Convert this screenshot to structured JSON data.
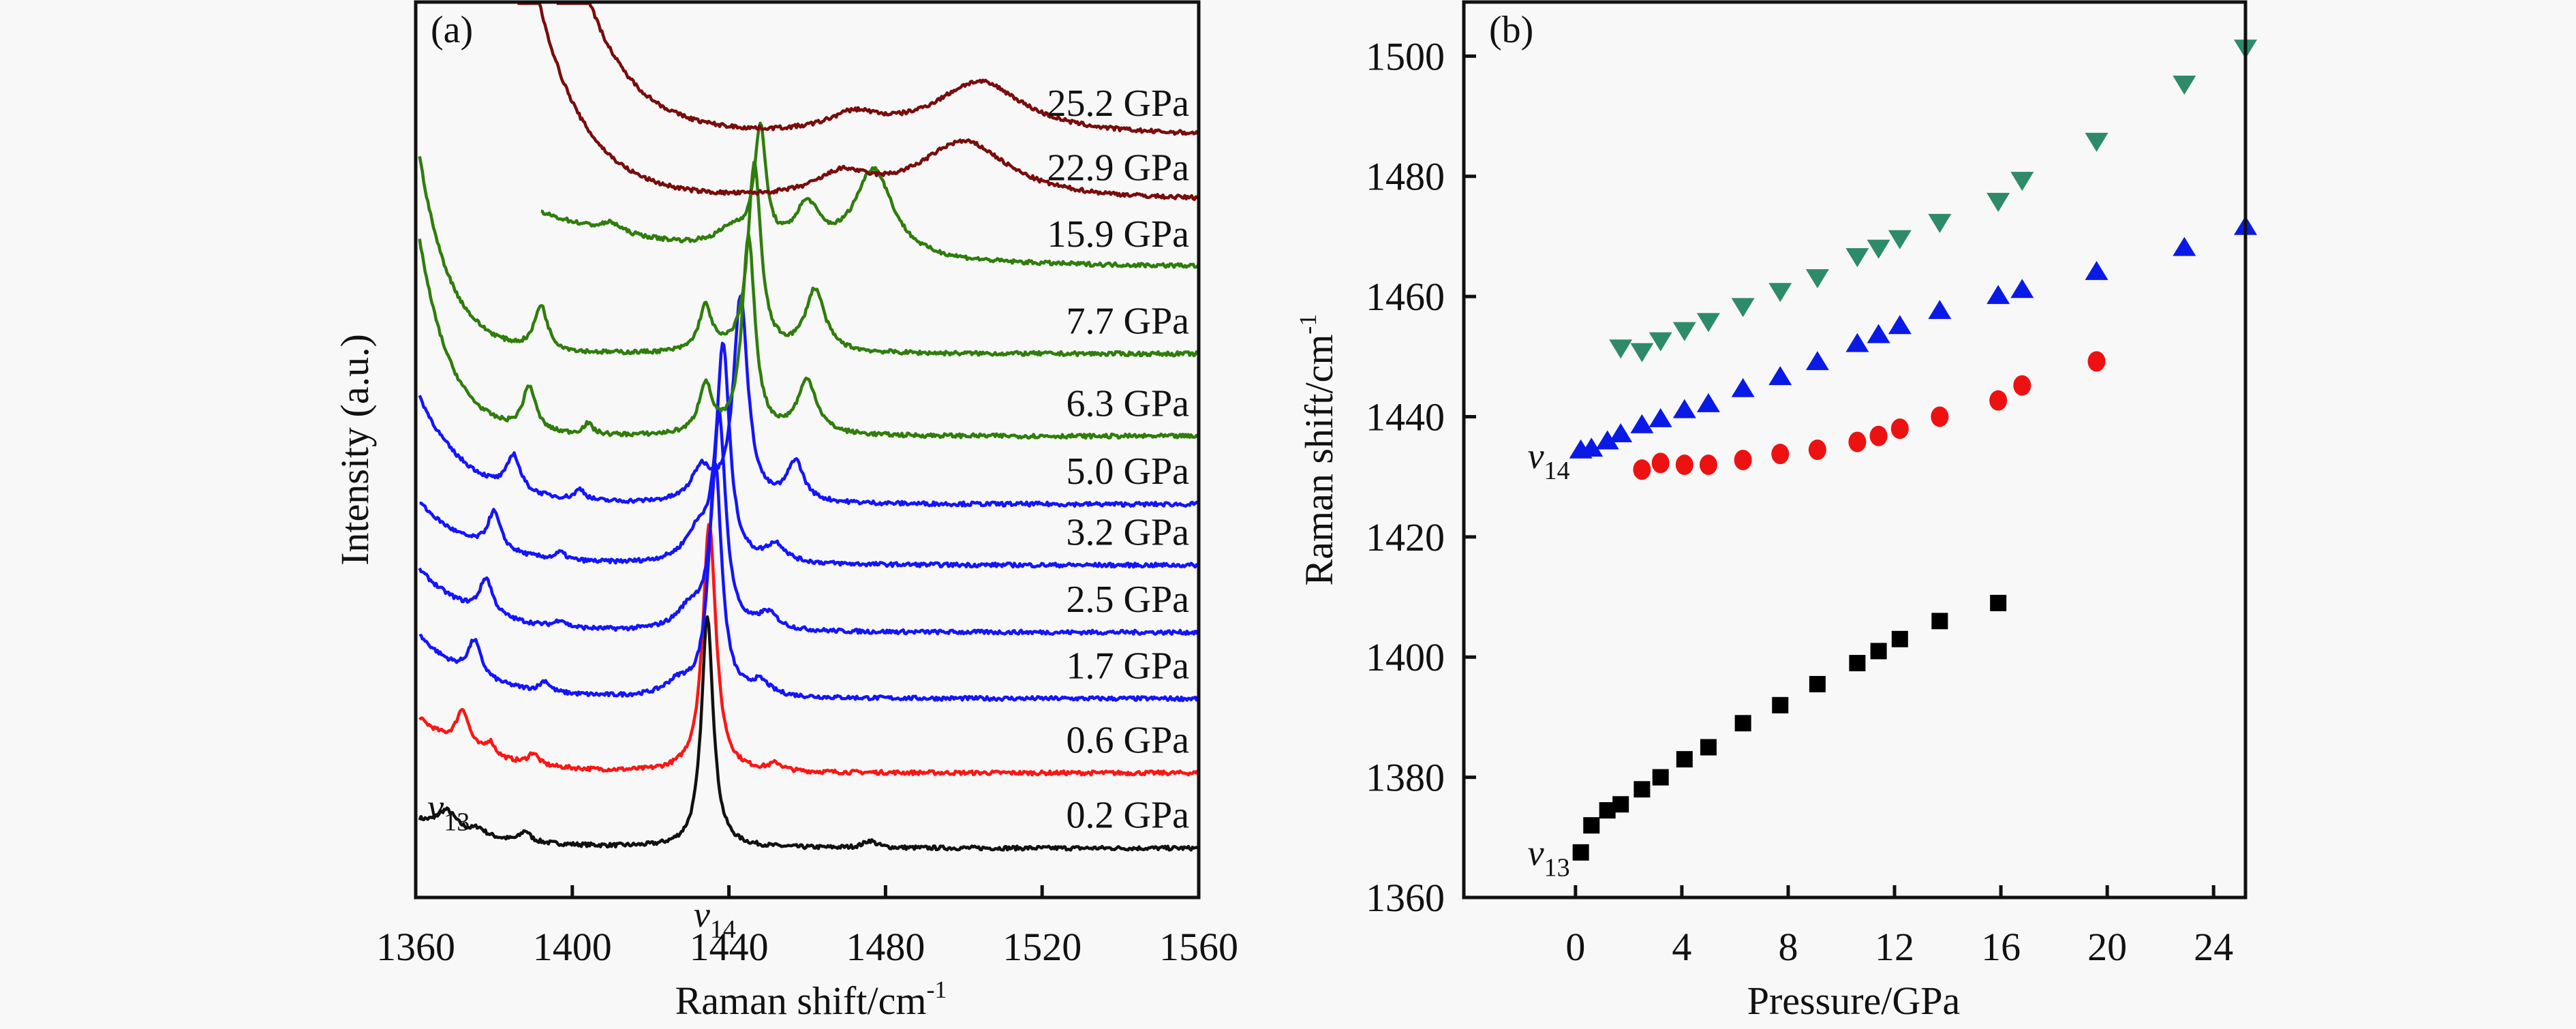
{
  "chart_data": [
    {
      "panel": "(a)",
      "type": "line",
      "title": "",
      "xlabel": "Raman shift/cm",
      "xlabel_sup": "-1",
      "ylabel": "Intensity (a.u.)",
      "xlim": [
        1360,
        1560
      ],
      "ylim": [
        0,
        100
      ],
      "xticks": [
        1360,
        1400,
        1440,
        1480,
        1520,
        1560
      ],
      "yticks": [],
      "grid": false,
      "annotations": [
        {
          "text": "v",
          "sub": "13",
          "x": 1363,
          "y": 11
        },
        {
          "text": "v",
          "sub": "14",
          "x": 1431,
          "y": -1
        }
      ],
      "series": [
        {
          "name": "0.2 GPa",
          "color": "#111111",
          "xstart": 1361,
          "baseline": 5.5,
          "background": {
            "amp": 3.0,
            "decay": 18
          },
          "peaks": [
            [
              1368,
              2.2,
              3
            ],
            [
              1376,
              0.8,
              2
            ],
            [
              1388,
              1.2,
              1.5
            ],
            [
              1434.5,
              26,
              1.8
            ],
            [
              1476,
              0.8,
              2
            ]
          ]
        },
        {
          "name": "0.6 GPa",
          "color": "#ff1414",
          "xstart": 1361,
          "baseline": 13.9,
          "background": {
            "amp": 6.0,
            "decay": 15
          },
          "peaks": [
            [
              1372,
              4.2,
              2
            ],
            [
              1379,
              1.5,
              1.5
            ],
            [
              1390,
              1.3,
              1.5
            ],
            [
              1435,
              28,
              2
            ],
            [
              1452,
              0.8,
              2
            ]
          ]
        },
        {
          "name": "1.7 GPa",
          "color": "#1414ff",
          "xstart": 1361,
          "baseline": 22.2,
          "background": {
            "amp": 7.0,
            "decay": 14
          },
          "peaks": [
            [
              1375,
              4.0,
              2
            ],
            [
              1393,
              1.2,
              1.5
            ],
            [
              1427,
              1.5,
              4
            ],
            [
              1436.5,
              26,
              2
            ],
            [
              1448,
              1.5,
              3
            ]
          ]
        },
        {
          "name": "2.5 GPa",
          "color": "#1414ff",
          "xstart": 1361,
          "baseline": 29.6,
          "background": {
            "amp": 7.0,
            "decay": 14
          },
          "peaks": [
            [
              1378,
              4.0,
              2
            ],
            [
              1397,
              0.8,
              1.5
            ],
            [
              1430,
              2.2,
              4
            ],
            [
              1437.5,
              24,
              2
            ],
            [
              1450,
              1.8,
              3
            ]
          ]
        },
        {
          "name": "3.2 GPa",
          "color": "#1414ff",
          "xstart": 1361,
          "baseline": 37.1,
          "background": {
            "amp": 7.0,
            "decay": 14
          },
          "peaks": [
            [
              1380,
              4.2,
              2
            ],
            [
              1397,
              0.8,
              1.5
            ],
            [
              1432,
              3.0,
              4
            ],
            [
              1438.5,
              24,
              2
            ],
            [
              1452,
              2.0,
              3
            ]
          ]
        },
        {
          "name": "5.0 GPa",
          "color": "#1414ff",
          "xstart": 1361,
          "baseline": 43.9,
          "background": {
            "amp": 12.0,
            "decay": 12
          },
          "peaks": [
            [
              1385,
              4.0,
              2
            ],
            [
              1402,
              1.2,
              1.5
            ],
            [
              1433,
              3.6,
              3
            ],
            [
              1443,
              23,
              2.2
            ],
            [
              1457,
              4.5,
              2.5
            ]
          ]
        },
        {
          "name": "6.3 GPa",
          "color": "#2f7d0c",
          "xstart": 1361,
          "baseline": 51.5,
          "background": {
            "amp": 22.0,
            "decay": 8
          },
          "peaks": [
            [
              1389,
              5.0,
              2
            ],
            [
              1404,
              1.2,
              1.5
            ],
            [
              1434,
              5.5,
              2
            ],
            [
              1445,
              22,
              2
            ],
            [
              1460,
              6.0,
              3
            ]
          ]
        },
        {
          "name": "7.7 GPa",
          "color": "#2f7d0c",
          "xstart": 1361,
          "baseline": 60.7,
          "background": {
            "amp": 22.0,
            "decay": 8
          },
          "peaks": [
            [
              1392,
              5.0,
              2
            ],
            [
              1434,
              5.0,
              2
            ],
            [
              1446.5,
              21,
              2
            ],
            [
              1462,
              7.0,
              3
            ]
          ]
        },
        {
          "name": "15.9 GPa",
          "color": "#2f7d0c",
          "xstart": 1392,
          "baseline": 70.4,
          "background": {
            "amp": 6.0,
            "decay": 40
          },
          "peaks": [
            [
              1410,
              1.0,
              3
            ],
            [
              1441,
              2.0,
              5
            ],
            [
              1448,
              13,
              1.8
            ],
            [
              1460,
              5.0,
              4
            ],
            [
              1477,
              10,
              6
            ]
          ]
        },
        {
          "name": "22.9 GPa",
          "color": "#7a0c0c",
          "xstart": 1386,
          "baseline": 77.8,
          "background": {
            "amp": 35.0,
            "decay": 12
          },
          "peaks": [
            [
              1469,
              2.5,
              8
            ],
            [
              1500,
              6.5,
              14
            ]
          ]
        },
        {
          "name": "25.2 GPa",
          "color": "#7a0c0c",
          "xstart": 1396,
          "baseline": 85.0,
          "background": {
            "amp": 30.0,
            "decay": 12
          },
          "peaks": [
            [
              1472,
              2.0,
              8
            ],
            [
              1504,
              6.0,
              14
            ]
          ]
        }
      ]
    },
    {
      "panel": "(b)",
      "type": "scatter",
      "title": "",
      "xlabel": "Pressure/GPa",
      "ylabel": "Raman shift/cm",
      "ylabel_sup": "-1",
      "xlim": [
        -4.2,
        25.2
      ],
      "ylim": [
        1360,
        1509
      ],
      "xticks": [
        0,
        4,
        8,
        12,
        16,
        20,
        24
      ],
      "yticks": [
        1360,
        1380,
        1400,
        1420,
        1440,
        1460,
        1480,
        1500
      ],
      "grid": false,
      "annotations": [
        {
          "text": "v",
          "sub": "14",
          "x": -1.8,
          "y": 1433
        },
        {
          "text": "v",
          "sub": "13",
          "x": -1.8,
          "y": 1367
        }
      ],
      "series": [
        {
          "name": "v13",
          "marker": "square",
          "color": "#000000",
          "points": [
            [
              0.2,
              1367.5
            ],
            [
              0.6,
              1372
            ],
            [
              1.2,
              1374.5
            ],
            [
              1.7,
              1375.5
            ],
            [
              2.5,
              1378
            ],
            [
              3.2,
              1380
            ],
            [
              4.1,
              1383
            ],
            [
              5.0,
              1385
            ],
            [
              6.3,
              1389
            ],
            [
              7.7,
              1392
            ],
            [
              9.1,
              1395.5
            ],
            [
              10.6,
              1399
            ],
            [
              11.4,
              1401
            ],
            [
              12.2,
              1403
            ],
            [
              13.7,
              1406
            ],
            [
              15.9,
              1409
            ]
          ]
        },
        {
          "name": "v14",
          "marker": "triangle-up",
          "color": "#0a1ae6",
          "points": [
            [
              0.2,
              1434.3
            ],
            [
              0.6,
              1434.6
            ],
            [
              1.2,
              1435.8
            ],
            [
              1.7,
              1437
            ],
            [
              2.5,
              1438.5
            ],
            [
              3.2,
              1439.5
            ],
            [
              4.1,
              1441
            ],
            [
              5.0,
              1442
            ],
            [
              6.3,
              1444.5
            ],
            [
              7.7,
              1446.5
            ],
            [
              9.1,
              1449
            ],
            [
              10.6,
              1452
            ],
            [
              11.4,
              1453.5
            ],
            [
              12.2,
              1455
            ],
            [
              13.7,
              1457.5
            ],
            [
              15.9,
              1460
            ],
            [
              16.8,
              1461
            ],
            [
              19.6,
              1464
            ],
            [
              22.9,
              1468
            ],
            [
              25.2,
              1471.5
            ]
          ]
        },
        {
          "name": "new-peak-circle",
          "marker": "circle",
          "color": "#ee1111",
          "points": [
            [
              2.5,
              1431.2
            ],
            [
              3.2,
              1432.3
            ],
            [
              4.1,
              1432
            ],
            [
              5.0,
              1432
            ],
            [
              6.3,
              1432.8
            ],
            [
              7.7,
              1433.8
            ],
            [
              9.1,
              1434.5
            ],
            [
              10.6,
              1435.8
            ],
            [
              11.4,
              1436.8
            ],
            [
              12.2,
              1438
            ],
            [
              13.7,
              1440
            ],
            [
              15.9,
              1442.7
            ],
            [
              16.8,
              1445.2
            ],
            [
              19.6,
              1449.2
            ]
          ]
        },
        {
          "name": "new-peak-triangle-down",
          "marker": "triangle-down",
          "color": "#2e8b6a",
          "points": [
            [
              1.7,
              1451.6
            ],
            [
              2.5,
              1451
            ],
            [
              3.2,
              1452.8
            ],
            [
              4.1,
              1454.5
            ],
            [
              5.0,
              1456
            ],
            [
              6.3,
              1458.5
            ],
            [
              7.7,
              1461
            ],
            [
              9.1,
              1463.3
            ],
            [
              10.6,
              1466.8
            ],
            [
              11.4,
              1468.2
            ],
            [
              12.2,
              1469.8
            ],
            [
              13.7,
              1472.5
            ],
            [
              15.9,
              1476
            ],
            [
              16.8,
              1479.5
            ],
            [
              19.6,
              1486
            ],
            [
              22.9,
              1495.5
            ],
            [
              25.2,
              1501.5
            ]
          ]
        }
      ]
    }
  ]
}
